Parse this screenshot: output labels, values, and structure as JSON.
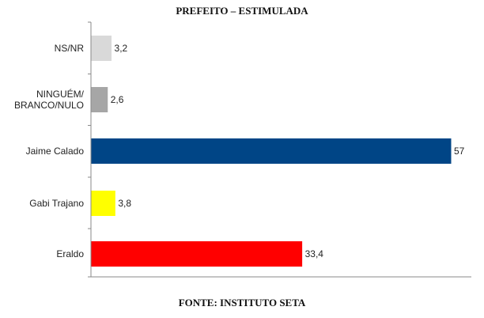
{
  "chart_data": {
    "type": "bar",
    "orientation": "horizontal",
    "title": "PREFEITO – ESTIMULADA",
    "source": "FONTE: INSTITUTO SETA",
    "categories": [
      {
        "label_lines": [
          "NS/NR"
        ],
        "value": 3.2,
        "value_label": "3,2",
        "color": "#d9d9d9"
      },
      {
        "label_lines": [
          "NINGUÉM/",
          "BRANCO/NULO"
        ],
        "value": 2.6,
        "value_label": "2,6",
        "color": "#a6a6a6"
      },
      {
        "label_lines": [
          "Jaime Calado"
        ],
        "value": 57,
        "value_label": "57",
        "color": "#004586"
      },
      {
        "label_lines": [
          "Gabi Trajano"
        ],
        "value": 3.8,
        "value_label": "3,8",
        "color": "#ffff00"
      },
      {
        "label_lines": [
          "Eraldo"
        ],
        "value": 33.4,
        "value_label": "33,4",
        "color": "#ff0000"
      }
    ],
    "xlim": [
      0,
      57
    ],
    "grid": false,
    "legend": "none"
  }
}
